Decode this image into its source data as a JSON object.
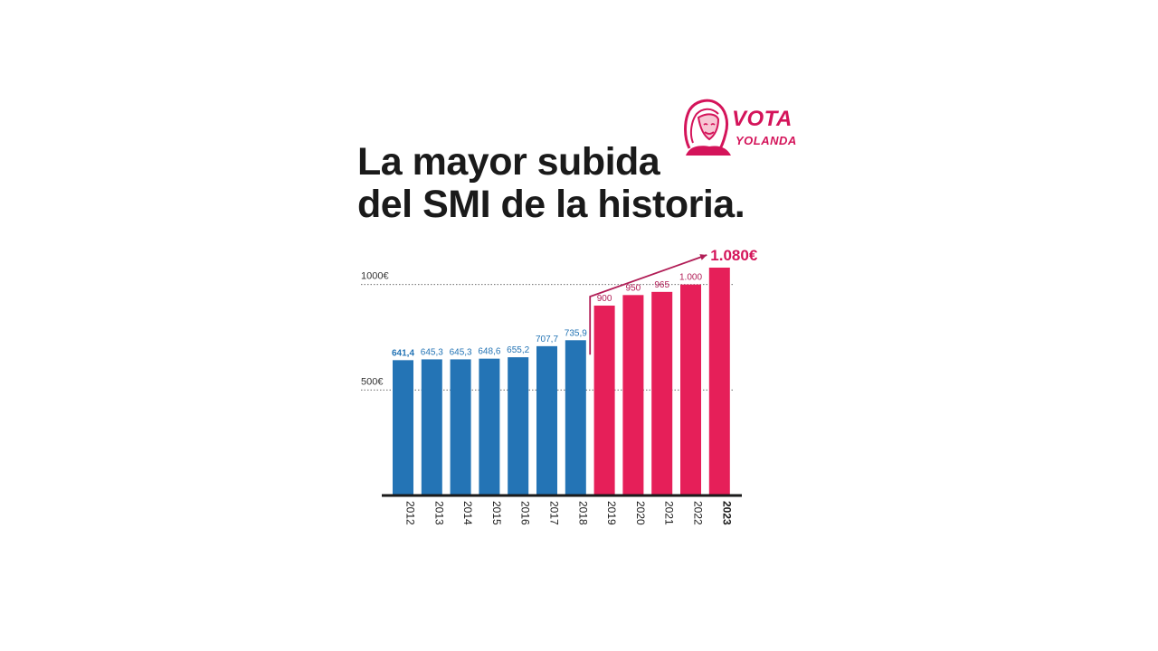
{
  "logo": {
    "line1": "VOTA",
    "line2": "YOLANDA",
    "color": "#d4145a"
  },
  "title_lines": [
    "La mayor subida",
    "del SMI de la historia."
  ],
  "colors": {
    "before": "#2474b5",
    "after": "#e61f59",
    "label_before": "#2474b5",
    "label_after": "#b11d56",
    "highlight": "#d4145a"
  },
  "chart_data": {
    "type": "bar",
    "title": "La mayor subida del SMI de la historia.",
    "xlabel": "",
    "ylabel": "",
    "categories": [
      "2012",
      "2013",
      "2014",
      "2015",
      "2016",
      "2017",
      "2018",
      "2019",
      "2020",
      "2021",
      "2022",
      "2023"
    ],
    "values": [
      641.4,
      645.3,
      645.3,
      648.6,
      655.2,
      707.7,
      735.9,
      900,
      950,
      965,
      1000,
      1080
    ],
    "value_labels": [
      "641,4",
      "645,3",
      "645,3",
      "648,6",
      "655,2",
      "707,7",
      "735,9",
      "900",
      "950",
      "965",
      "1.000",
      "1.080€"
    ],
    "ylim": [
      0,
      1080
    ],
    "reference_lines": [
      {
        "value": 1000,
        "label": "1000€"
      },
      {
        "value": 500,
        "label": "500€"
      }
    ],
    "highlight_from_index": 7,
    "grid": false,
    "legend": "none"
  }
}
